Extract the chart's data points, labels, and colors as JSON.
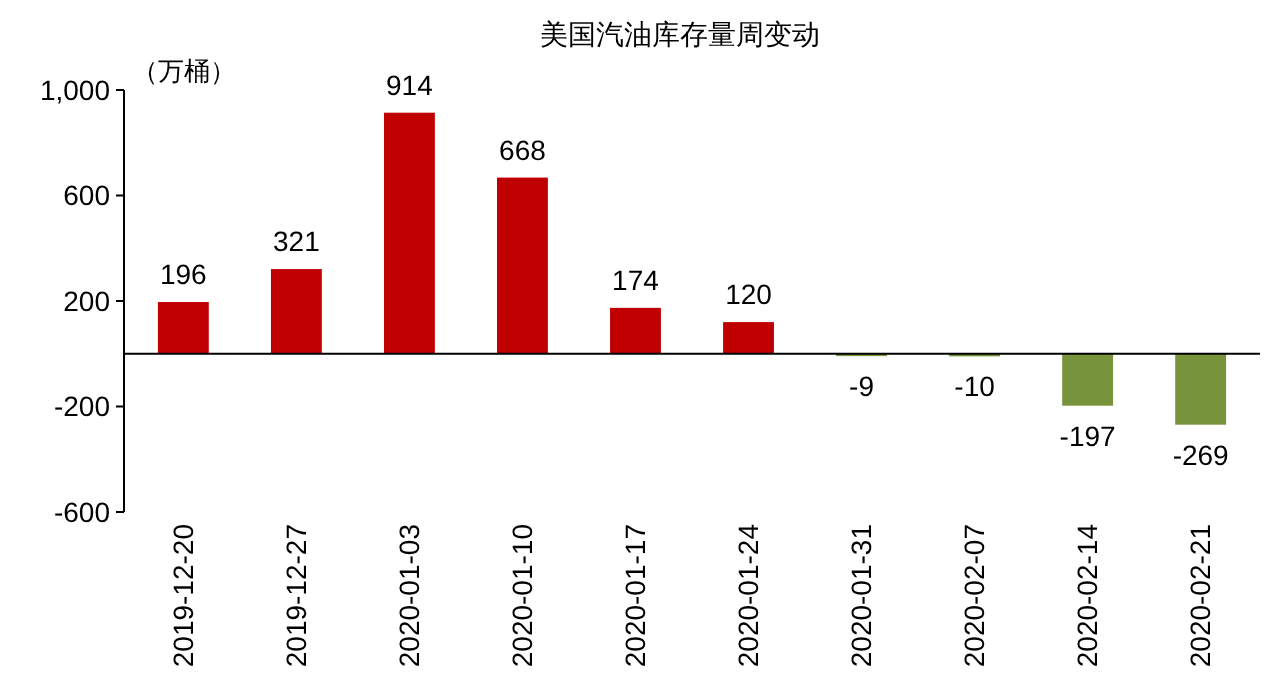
{
  "chart_data": {
    "type": "bar",
    "title": "美国汽油库存量周变动",
    "ylabel": "（万桶）",
    "categories": [
      "2019-12-20",
      "2019-12-27",
      "2020-01-03",
      "2020-01-10",
      "2020-01-17",
      "2020-01-24",
      "2020-01-31",
      "2020-02-07",
      "2020-02-14",
      "2020-02-21"
    ],
    "values": [
      196,
      321,
      914,
      668,
      174,
      120,
      -9,
      -10,
      -197,
      -269
    ],
    "colors": [
      "#c00000",
      "#c00000",
      "#c00000",
      "#c00000",
      "#c00000",
      "#c00000",
      "#77933c",
      "#77933c",
      "#77933c",
      "#77933c"
    ],
    "ylim": [
      -600,
      1000
    ],
    "yticks": [
      -600,
      -200,
      200,
      600,
      {
        "value": 1000,
        "label": "1,000"
      }
    ],
    "data_labels": true,
    "grid": false
  }
}
